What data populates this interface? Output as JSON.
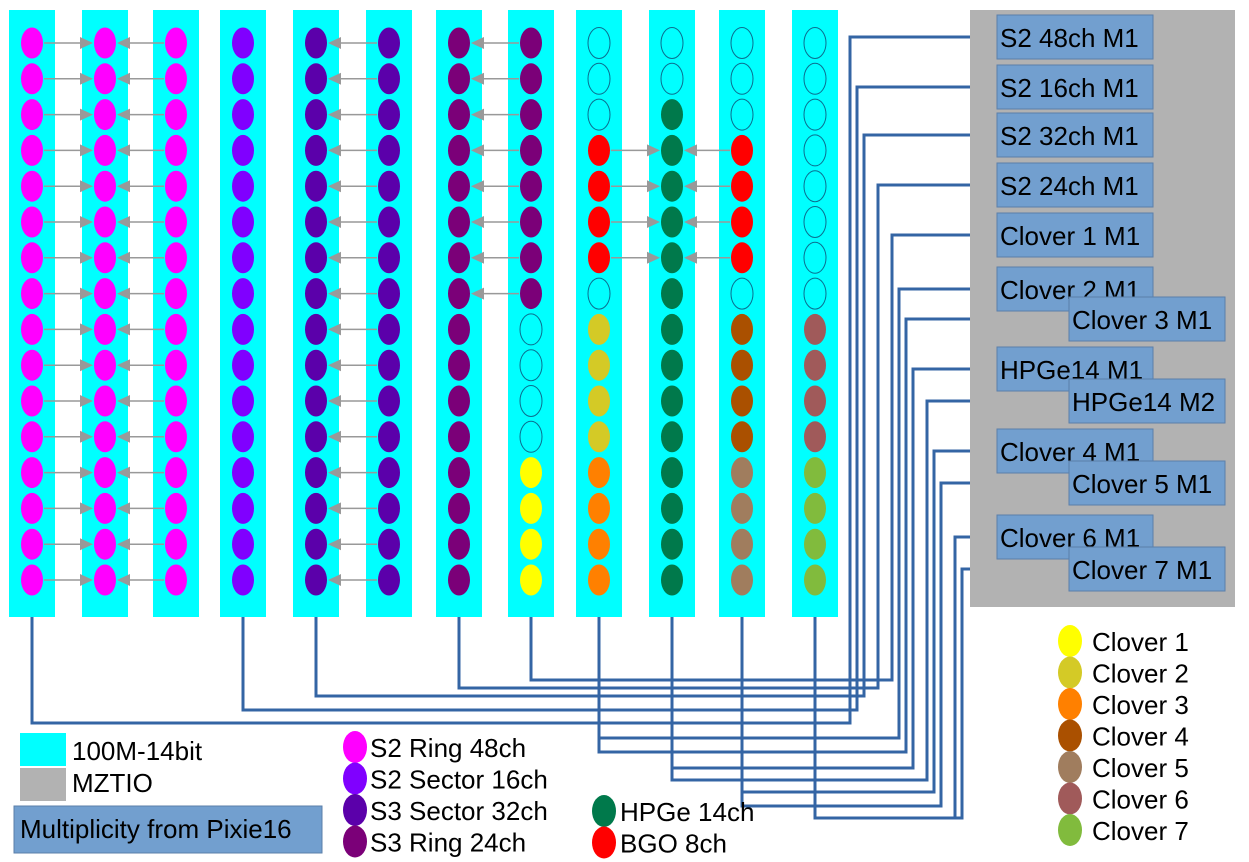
{
  "colors": {
    "module": "#00FFFF",
    "mztio": "#B2B2B2",
    "multiplicity": "#729FCF",
    "wire": "#3465A4",
    "arrow": "#999999",
    "empty_fill": "#00FFFF",
    "empty_stroke": "#0B6E8F"
  },
  "modules": [
    {
      "id": "m1",
      "channels": [
        "s2ring",
        "s2ring",
        "s2ring",
        "s2ring",
        "s2ring",
        "s2ring",
        "s2ring",
        "s2ring",
        "s2ring",
        "s2ring",
        "s2ring",
        "s2ring",
        "s2ring",
        "s2ring",
        "s2ring",
        "s2ring"
      ]
    },
    {
      "id": "m2",
      "channels": [
        "s2ring",
        "s2ring",
        "s2ring",
        "s2ring",
        "s2ring",
        "s2ring",
        "s2ring",
        "s2ring",
        "s2ring",
        "s2ring",
        "s2ring",
        "s2ring",
        "s2ring",
        "s2ring",
        "s2ring",
        "s2ring"
      ]
    },
    {
      "id": "m3",
      "channels": [
        "s2ring",
        "s2ring",
        "s2ring",
        "s2ring",
        "s2ring",
        "s2ring",
        "s2ring",
        "s2ring",
        "s2ring",
        "s2ring",
        "s2ring",
        "s2ring",
        "s2ring",
        "s2ring",
        "s2ring",
        "s2ring"
      ]
    },
    {
      "id": "m4",
      "channels": [
        "s2sector",
        "s2sector",
        "s2sector",
        "s2sector",
        "s2sector",
        "s2sector",
        "s2sector",
        "s2sector",
        "s2sector",
        "s2sector",
        "s2sector",
        "s2sector",
        "s2sector",
        "s2sector",
        "s2sector",
        "s2sector"
      ]
    },
    {
      "id": "m5",
      "channels": [
        "s3sector",
        "s3sector",
        "s3sector",
        "s3sector",
        "s3sector",
        "s3sector",
        "s3sector",
        "s3sector",
        "s3sector",
        "s3sector",
        "s3sector",
        "s3sector",
        "s3sector",
        "s3sector",
        "s3sector",
        "s3sector"
      ]
    },
    {
      "id": "m6",
      "channels": [
        "s3sector",
        "s3sector",
        "s3sector",
        "s3sector",
        "s3sector",
        "s3sector",
        "s3sector",
        "s3sector",
        "s3sector",
        "s3sector",
        "s3sector",
        "s3sector",
        "s3sector",
        "s3sector",
        "s3sector",
        "s3sector"
      ]
    },
    {
      "id": "m7",
      "channels": [
        "s3ring",
        "s3ring",
        "s3ring",
        "s3ring",
        "s3ring",
        "s3ring",
        "s3ring",
        "s3ring",
        "s3ring",
        "s3ring",
        "s3ring",
        "s3ring",
        "s3ring",
        "s3ring",
        "s3ring",
        "s3ring"
      ]
    },
    {
      "id": "m8",
      "channels": [
        "s3ring",
        "s3ring",
        "s3ring",
        "s3ring",
        "s3ring",
        "s3ring",
        "s3ring",
        "s3ring",
        "empty",
        "empty",
        "empty",
        "empty",
        "clover1",
        "clover1",
        "clover1",
        "clover1"
      ]
    },
    {
      "id": "m9",
      "channels": [
        "empty",
        "empty",
        "empty",
        "bgo",
        "bgo",
        "bgo",
        "bgo",
        "empty",
        "clover2",
        "clover2",
        "clover2",
        "clover2",
        "clover3",
        "clover3",
        "clover3",
        "clover3"
      ]
    },
    {
      "id": "m10",
      "channels": [
        "empty",
        "empty",
        "hpge",
        "hpge",
        "hpge",
        "hpge",
        "hpge",
        "hpge",
        "hpge",
        "hpge",
        "hpge",
        "hpge",
        "hpge",
        "hpge",
        "hpge",
        "hpge"
      ]
    },
    {
      "id": "m11",
      "channels": [
        "empty",
        "empty",
        "empty",
        "bgo",
        "bgo",
        "bgo",
        "bgo",
        "empty",
        "clover4",
        "clover4",
        "clover4",
        "clover4",
        "clover5",
        "clover5",
        "clover5",
        "clover5"
      ]
    },
    {
      "id": "m12",
      "channels": [
        "empty",
        "empty",
        "empty",
        "empty",
        "empty",
        "empty",
        "empty",
        "empty",
        "clover6",
        "clover6",
        "clover6",
        "clover6",
        "clover7",
        "clover7",
        "clover7",
        "clover7"
      ]
    }
  ],
  "channel_types": {
    "s2ring": {
      "color": "#FF00FF"
    },
    "s2sector": {
      "color": "#8000FF"
    },
    "s3sector": {
      "color": "#5B00AA"
    },
    "s3ring": {
      "color": "#7B0078"
    },
    "hpge": {
      "color": "#00794B"
    },
    "bgo": {
      "color": "#FF0000"
    },
    "clover1": {
      "color": "#FFFF00"
    },
    "clover2": {
      "color": "#D4CA26"
    },
    "clover3": {
      "color": "#FF8000"
    },
    "clover4": {
      "color": "#AA5000"
    },
    "clover5": {
      "color": "#A07D5E"
    },
    "clover6": {
      "color": "#A05A5A"
    },
    "clover7": {
      "color": "#81BB3D"
    },
    "empty": {
      "color": "#00FFFF"
    }
  },
  "arrow_groups": [
    {
      "dir": "right",
      "gap": 0,
      "rows": [
        0,
        1,
        2,
        3,
        4,
        5,
        6,
        7,
        8,
        9,
        10,
        11,
        12,
        13,
        14,
        15
      ]
    },
    {
      "dir": "left",
      "gap": 1,
      "rows": [
        0,
        1,
        2,
        3,
        4,
        5,
        6,
        7,
        8,
        9,
        10,
        11,
        12,
        13,
        14,
        15
      ]
    },
    {
      "dir": "left",
      "gap": 4,
      "rows": [
        0,
        1,
        2,
        3,
        4,
        5,
        6,
        7,
        8,
        9,
        10,
        11,
        12,
        13,
        14,
        15
      ]
    },
    {
      "dir": "left",
      "gap": 6,
      "rows": [
        0,
        1,
        2,
        3,
        4,
        5,
        6,
        7
      ]
    },
    {
      "dir": "right",
      "gap": 8,
      "rows": [
        3,
        4,
        5,
        6
      ]
    },
    {
      "dir": "left",
      "gap": 9,
      "rows": [
        3,
        4,
        5,
        6
      ]
    }
  ],
  "mztio_outputs": [
    {
      "label": "S2 48ch M1",
      "col": 0
    },
    {
      "label": "S2 16ch M1",
      "col": 0
    },
    {
      "label": "S2 32ch M1",
      "col": 0
    },
    {
      "label": "S2 24ch M1",
      "col": 0
    },
    {
      "label": "Clover 1 M1",
      "col": 0
    },
    {
      "label": "Clover 2 M1",
      "col": 0
    },
    {
      "label": "Clover 3 M1",
      "col": 1
    },
    {
      "label": "HPGe14 M1",
      "col": 0
    },
    {
      "label": "HPGe14 M2",
      "col": 1
    },
    {
      "label": "Clover 4 M1",
      "col": 0
    },
    {
      "label": "Clover 5 M1",
      "col": 1
    },
    {
      "label": "Clover 6 M1",
      "col": 0
    },
    {
      "label": "Clover 7 M1",
      "col": 1
    }
  ],
  "legend": {
    "module_types": [
      {
        "label": "100M-14bit",
        "shape": "rect",
        "color": "#00FFFF"
      },
      {
        "label": "MZTIO",
        "shape": "rect",
        "color": "#B2B2B2"
      },
      {
        "label": "Multiplicity from Pixie16",
        "shape": "box",
        "color": "#729FCF"
      }
    ],
    "silicon": [
      {
        "label": "S2 Ring 48ch",
        "color": "#FF00FF"
      },
      {
        "label": "S2 Sector 16ch",
        "color": "#8000FF"
      },
      {
        "label": "S3 Sector 32ch",
        "color": "#5B00AA"
      },
      {
        "label": "S3 Ring 24ch",
        "color": "#7B0078"
      }
    ],
    "germanium": [
      {
        "label": "HPGe 14ch",
        "color": "#00794B"
      },
      {
        "label": "BGO   8ch",
        "color": "#FF0000"
      }
    ],
    "clovers": [
      {
        "label": "Clover 1",
        "color": "#FFFF00"
      },
      {
        "label": "Clover 2",
        "color": "#D4CA26"
      },
      {
        "label": "Clover 3",
        "color": "#FF8000"
      },
      {
        "label": "Clover 4",
        "color": "#AA5000"
      },
      {
        "label": "Clover 5",
        "color": "#A07D5E"
      },
      {
        "label": "Clover 6",
        "color": "#A05A5A"
      },
      {
        "label": "Clover 7",
        "color": "#81BB3D"
      }
    ]
  }
}
